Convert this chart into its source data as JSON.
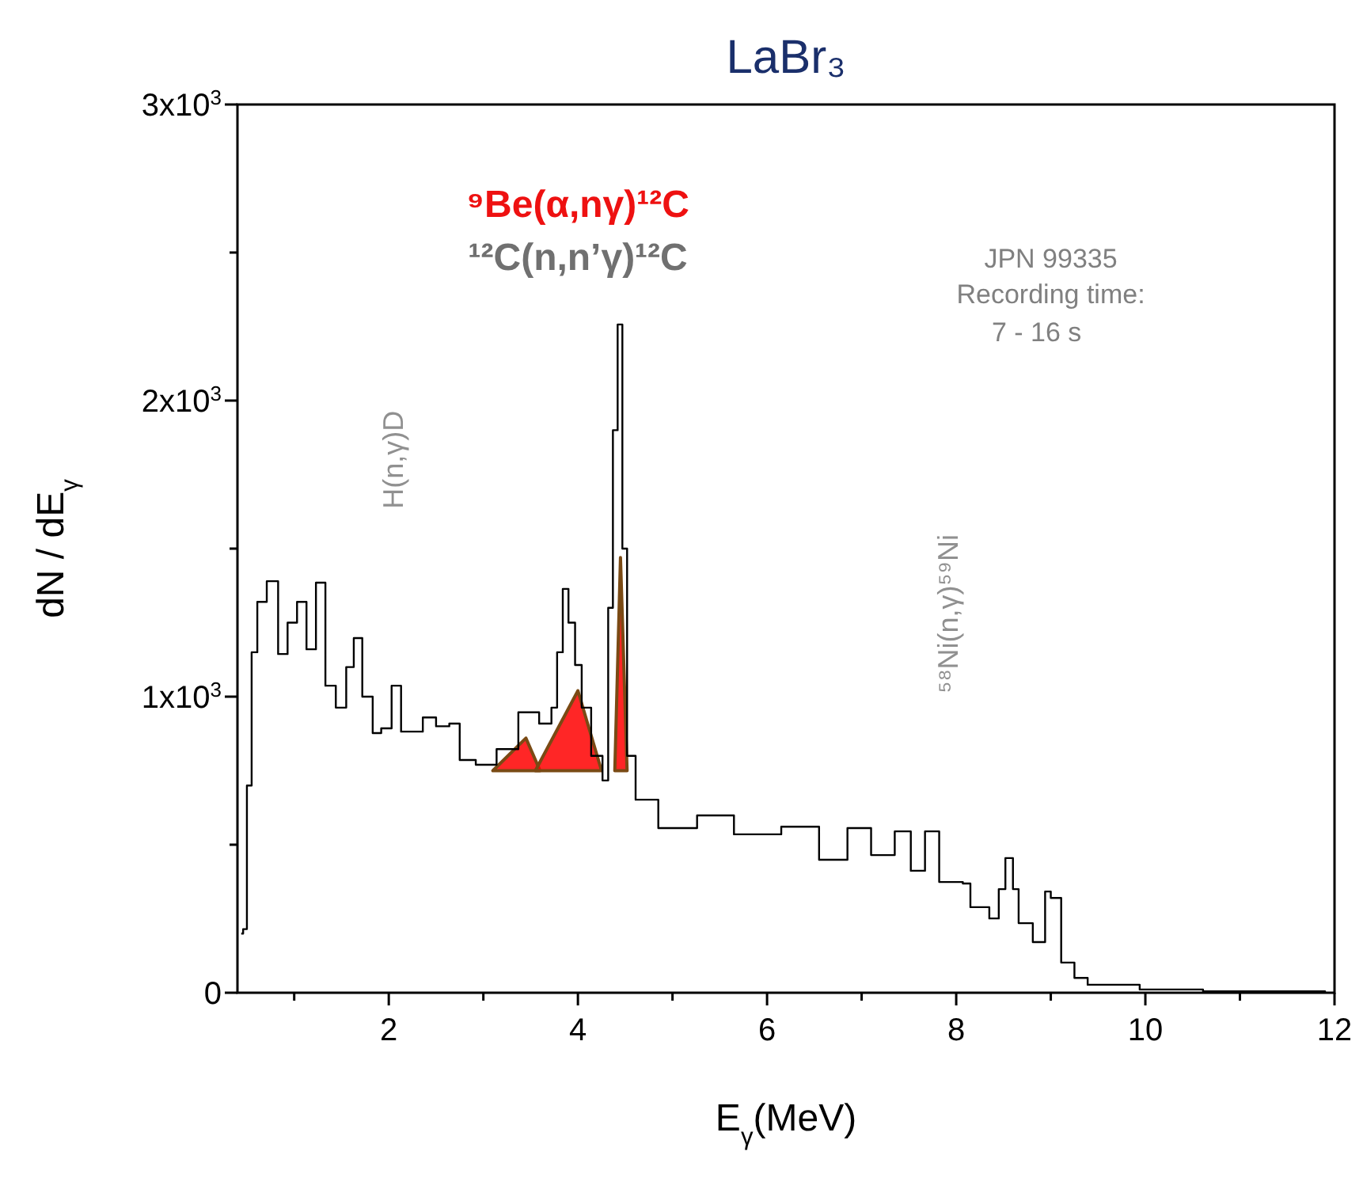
{
  "chart_data": {
    "type": "step",
    "title": "LaBr₃",
    "xlabel": "E$_{γ}$(MeV)",
    "ylabel": "dN / dE$_{γ}$",
    "xlim": [
      0.4,
      12
    ],
    "ylim": [
      0,
      3000
    ],
    "xticks": [
      {
        "value": 1,
        "label": null
      },
      2,
      {
        "value": 3,
        "label": null
      },
      4,
      {
        "value": 5,
        "label": null
      },
      6,
      {
        "value": 7,
        "label": null
      },
      8,
      {
        "value": 9,
        "label": null
      },
      10,
      {
        "value": 11,
        "label": null
      },
      12
    ],
    "yticks": [
      0,
      {
        "value": 500,
        "label": null
      },
      {
        "value": 1000,
        "label": "1x10$^{3}$"
      },
      {
        "value": 1500,
        "label": null
      },
      {
        "value": 2000,
        "label": "2x10$^{3}$"
      },
      {
        "value": 2500,
        "label": null
      },
      {
        "value": 3000,
        "label": "3x10$^{3}$"
      }
    ],
    "series": [
      {
        "color": "#000000",
        "x": [
          0.44,
          0.46,
          0.5,
          0.55,
          0.61,
          0.71,
          0.83,
          0.93,
          1.03,
          1.13,
          1.23,
          1.33,
          1.44,
          1.55,
          1.63,
          1.72,
          1.83,
          1.92,
          2.03,
          2.13,
          2.36,
          2.5,
          2.64,
          2.75,
          2.92,
          3.14,
          3.37,
          3.59,
          3.72,
          3.78,
          3.84,
          3.9,
          3.97,
          4.04,
          4.14,
          4.26,
          4.32,
          4.37,
          4.42,
          4.47,
          4.52,
          4.61,
          4.85,
          4.98,
          5.26,
          5.65,
          6.15,
          6.55,
          6.85,
          7.1,
          7.35,
          7.52,
          7.67,
          7.82,
          8.07,
          8.15,
          8.35,
          8.45,
          8.52,
          8.6,
          8.66,
          8.81,
          8.94,
          9.0,
          9.11,
          9.25,
          9.39,
          9.94,
          10.61,
          11.9
        ],
        "values": [
          200,
          215,
          700,
          1150,
          1320,
          1390,
          1144,
          1250,
          1320,
          1160,
          1385,
          1037,
          963,
          1100,
          1198,
          1000,
          877,
          893,
          1037,
          882,
          930,
          900,
          909,
          786,
          770,
          823,
          947,
          909,
          963,
          1150,
          1364,
          1250,
          1107,
          963,
          800,
          717,
          1300,
          1900,
          2257,
          1500,
          800,
          652,
          556,
          556,
          599,
          535,
          561,
          449,
          556,
          465,
          545,
          412,
          545,
          374,
          369,
          289,
          251,
          350,
          455,
          350,
          235,
          171,
          342,
          320,
          102,
          50,
          27,
          11,
          5,
          0
        ]
      }
    ],
    "annotations": [
      "⁹Be(α,nγ)¹²C",
      "¹²C(n,n’γ)¹²C",
      "JPN 99335",
      "Recording time:",
      "7 - 16 s",
      "H(n,γ)D",
      "⁵⁸Ni(n,γ)⁵⁹Ni"
    ]
  }
}
